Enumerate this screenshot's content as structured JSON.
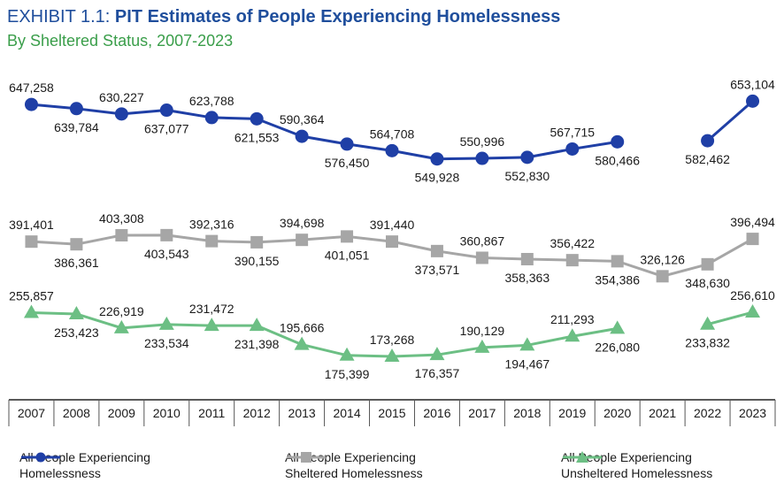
{
  "header": {
    "title_prefix": "EXHIBIT 1.1: ",
    "title_main": "PIT Estimates of People Experiencing Homelessness",
    "subtitle": "By Sheltered Status, 2007-2023"
  },
  "chart_data": {
    "type": "line",
    "title": "EXHIBIT 1.1: PIT Estimates of People Experiencing Homelessness",
    "subtitle": "By Sheltered Status, 2007-2023",
    "categories": [
      "2007",
      "2008",
      "2009",
      "2010",
      "2011",
      "2012",
      "2013",
      "2014",
      "2015",
      "2016",
      "2017",
      "2018",
      "2019",
      "2020",
      "2021",
      "2022",
      "2023"
    ],
    "grid": false,
    "legend_position": "bottom",
    "series": [
      {
        "name": "All People Experiencing Homelessness",
        "color": "#1f3fa6",
        "marker": "circle",
        "values": [
          647258,
          639784,
          630227,
          637077,
          623788,
          621553,
          590364,
          576450,
          564708,
          549928,
          550996,
          552830,
          567715,
          580466,
          null,
          582462,
          653104
        ],
        "labels": [
          "647,258",
          "639,784",
          "630,227",
          "637,077",
          "623,788",
          "621,553",
          "590,364",
          "576,450",
          "564,708",
          "549,928",
          "550,996",
          "552,830",
          "567,715",
          "580,466",
          null,
          "582,462",
          "653,104"
        ]
      },
      {
        "name": "All People Experiencing Sheltered Homelessness",
        "color": "#a6a6a6",
        "marker": "square",
        "values": [
          391401,
          386361,
          403308,
          403543,
          392316,
          390155,
          394698,
          401051,
          391440,
          373571,
          360867,
          358363,
          356422,
          354386,
          326126,
          348630,
          396494
        ],
        "labels": [
          "391,401",
          "386,361",
          "403,308",
          "403,543",
          "392,316",
          "390,155",
          "394,698",
          "401,051",
          "391,440",
          "373,571",
          "360,867",
          "358,363",
          "356,422",
          "354,386",
          "326,126",
          "348,630",
          "396,494"
        ]
      },
      {
        "name": "All People Experiencing Unsheltered Homelessness",
        "color": "#6cbf84",
        "marker": "triangle",
        "values": [
          255857,
          253423,
          226919,
          233534,
          231472,
          231398,
          195666,
          175399,
          173268,
          176357,
          190129,
          194467,
          211293,
          226080,
          null,
          233832,
          256610
        ],
        "labels": [
          "255,857",
          "253,423",
          "226,919",
          "233,534",
          "231,472",
          "231,398",
          "195,666",
          "175,399",
          "173,268",
          "176,357",
          "190,129",
          "194,467",
          "211,293",
          "226,080",
          null,
          "233,832",
          "256,610"
        ]
      }
    ]
  },
  "legend": {
    "items": [
      {
        "line1": "All People Experiencing",
        "line2": "Homelessness"
      },
      {
        "line1": "All People Experiencing",
        "line2": "Sheltered Homelessness"
      },
      {
        "line1": "All People Experiencing",
        "line2": "Unsheltered Homelessness"
      }
    ]
  }
}
